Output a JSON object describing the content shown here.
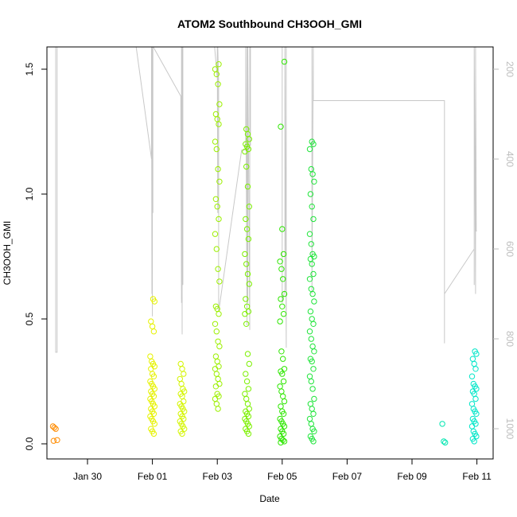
{
  "chart_data": {
    "type": "scatter",
    "title": "ATOM2 Southbound CH3OOH_GMI",
    "xlabel": "Date",
    "ylabel": "CH3OOH_GMI",
    "x_range": [
      "2017-01-28T18:00",
      "2017-02-11T12:00"
    ],
    "ylim": [
      0,
      1.6
    ],
    "x_ticks": [
      {
        "date": "2017-01-30",
        "label": "Jan 30"
      },
      {
        "date": "2017-02-01",
        "label": "Feb 01"
      },
      {
        "date": "2017-02-03",
        "label": "Feb 03"
      },
      {
        "date": "2017-02-05",
        "label": "Feb 05"
      },
      {
        "date": "2017-02-07",
        "label": "Feb 07"
      },
      {
        "date": "2017-02-09",
        "label": "Feb 09"
      },
      {
        "date": "2017-02-11",
        "label": "Feb 11"
      }
    ],
    "y_ticks": [
      0.0,
      0.5,
      1.0,
      1.5
    ],
    "y_tick_labels": [
      "0.0",
      "0.5",
      "1.0",
      "1.5"
    ],
    "right_axis": {
      "quantity": "pressure",
      "inverted": true,
      "range": [
        150,
        1040
      ],
      "ticks": [
        200,
        400,
        600,
        800,
        1000
      ],
      "color": "#bdbdbd"
    },
    "grid": false,
    "legend": "none",
    "series": [
      {
        "time": "2017-01-29T00:00",
        "color": "#ff8c00",
        "values": [
          0.07,
          0.065,
          0.06,
          0.015,
          0.012
        ]
      },
      {
        "time": "2017-02-01T00:00",
        "color": "#e6f200",
        "values": [
          0.58,
          0.57,
          0.49,
          0.47,
          0.45,
          0.35,
          0.33,
          0.32,
          0.31,
          0.3,
          0.28,
          0.27,
          0.25,
          0.24,
          0.23,
          0.22,
          0.21,
          0.2,
          0.19,
          0.18,
          0.17,
          0.16,
          0.15,
          0.14,
          0.13,
          0.12,
          0.11,
          0.1,
          0.09,
          0.08,
          0.06,
          0.05,
          0.04
        ]
      },
      {
        "time": "2017-02-01T22:00",
        "color": "#d4f500",
        "values": [
          0.32,
          0.3,
          0.28,
          0.26,
          0.24,
          0.22,
          0.21,
          0.2,
          0.19,
          0.17,
          0.16,
          0.15,
          0.14,
          0.13,
          0.12,
          0.11,
          0.1,
          0.09,
          0.08,
          0.07,
          0.06,
          0.05,
          0.04
        ]
      },
      {
        "time": "2017-02-03T00:00",
        "color": "#9cf000",
        "values": [
          1.52,
          1.5,
          1.48,
          1.44,
          1.36,
          1.32,
          1.3,
          1.28,
          1.21,
          1.18,
          1.1,
          1.05,
          0.98,
          0.95,
          0.9,
          0.84,
          0.78,
          0.7,
          0.65,
          0.55,
          0.54,
          0.52,
          0.48,
          0.45,
          0.41,
          0.39,
          0.35,
          0.33,
          0.31,
          0.3,
          0.28,
          0.26,
          0.24,
          0.23,
          0.2,
          0.19,
          0.18,
          0.16,
          0.14
        ]
      },
      {
        "time": "2017-02-03T22:00",
        "color": "#7cf000",
        "values": [
          1.26,
          1.24,
          1.22,
          1.2,
          1.19,
          1.18,
          1.17,
          1.11,
          1.03,
          0.95,
          0.9,
          0.86,
          0.82,
          0.76,
          0.72,
          0.68,
          0.64,
          0.58,
          0.55,
          0.53,
          0.52,
          0.48,
          0.36,
          0.32,
          0.28,
          0.25,
          0.22,
          0.2,
          0.18,
          0.16,
          0.14,
          0.13,
          0.12,
          0.11,
          0.1,
          0.09,
          0.08,
          0.07,
          0.06,
          0.05,
          0.04
        ]
      },
      {
        "time": "2017-02-05T00:00",
        "color": "#2ee600",
        "values": [
          1.53,
          1.27,
          0.86,
          0.76,
          0.73,
          0.7,
          0.66,
          0.6,
          0.58,
          0.55,
          0.52,
          0.49,
          0.37,
          0.34,
          0.3,
          0.29,
          0.28,
          0.25,
          0.23,
          0.21,
          0.19,
          0.17,
          0.15,
          0.13,
          0.12,
          0.1,
          0.09,
          0.08,
          0.07,
          0.06,
          0.05,
          0.04,
          0.03,
          0.02,
          0.015,
          0.01,
          0.005
        ]
      },
      {
        "time": "2017-02-05T22:00",
        "color": "#1fe53a",
        "values": [
          1.21,
          1.2,
          1.18,
          1.1,
          1.08,
          1.05,
          1.0,
          0.95,
          0.9,
          0.84,
          0.8,
          0.76,
          0.75,
          0.74,
          0.72,
          0.68,
          0.66,
          0.62,
          0.6,
          0.57,
          0.53,
          0.5,
          0.48,
          0.45,
          0.42,
          0.39,
          0.37,
          0.34,
          0.33,
          0.3,
          0.27,
          0.25,
          0.22,
          0.18,
          0.16,
          0.14,
          0.12,
          0.1,
          0.08,
          0.06,
          0.05,
          0.03,
          0.02,
          0.01
        ]
      },
      {
        "time": "2017-02-10T00:00",
        "color": "#00e6b0",
        "values": [
          0.08,
          0.01,
          0.005
        ]
      },
      {
        "time": "2017-02-10T22:00",
        "color": "#00e6c8",
        "values": [
          0.37,
          0.36,
          0.34,
          0.32,
          0.3,
          0.27,
          0.24,
          0.23,
          0.22,
          0.21,
          0.2,
          0.18,
          0.16,
          0.14,
          0.13,
          0.12,
          0.1,
          0.09,
          0.08,
          0.07,
          0.05,
          0.04,
          0.03,
          0.02,
          0.01
        ]
      }
    ],
    "pressure_trace": [
      [
        "2017-01-28T23:00",
        150
      ],
      [
        "2017-01-29T00:30",
        150
      ],
      [
        "2017-01-29T00:30",
        830
      ],
      [
        "2017-01-29T01:30",
        830
      ],
      [
        "2017-01-29T01:30",
        150
      ],
      [
        "2017-01-31T12:00",
        150
      ],
      [
        "2017-01-31T23:20",
        400
      ],
      [
        "2017-01-31T23:20",
        150
      ],
      [
        "2017-01-31T23:40",
        700
      ],
      [
        "2017-01-31T23:40",
        150
      ],
      [
        "2017-02-01T00:00",
        750
      ],
      [
        "2017-02-01T00:00",
        150
      ],
      [
        "2017-02-01T00:20",
        520
      ],
      [
        "2017-02-01T00:20",
        150
      ],
      [
        "2017-02-01T00:40",
        150
      ],
      [
        "2017-02-01T21:00",
        260
      ],
      [
        "2017-02-01T21:30",
        720
      ],
      [
        "2017-02-01T21:30",
        150
      ],
      [
        "2017-02-01T22:00",
        790
      ],
      [
        "2017-02-01T22:00",
        150
      ],
      [
        "2017-02-01T22:30",
        680
      ],
      [
        "2017-02-01T22:30",
        150
      ],
      [
        "2017-02-02T22:00",
        150
      ],
      [
        "2017-02-03T00:00",
        220
      ],
      [
        "2017-02-03T00:00",
        150
      ],
      [
        "2017-02-03T00:20",
        520
      ],
      [
        "2017-02-03T00:20",
        150
      ],
      [
        "2017-02-03T01:00",
        230
      ],
      [
        "2017-02-03T01:00",
        740
      ],
      [
        "2017-02-03T18:00",
        380
      ],
      [
        "2017-02-03T21:00",
        380
      ],
      [
        "2017-02-03T21:00",
        150
      ],
      [
        "2017-02-03T22:00",
        770
      ],
      [
        "2017-02-03T22:00",
        150
      ],
      [
        "2017-02-03T22:30",
        720
      ],
      [
        "2017-02-03T22:30",
        150
      ],
      [
        "2017-02-04T00:00",
        780
      ],
      [
        "2017-02-04T00:00",
        150
      ],
      [
        "2017-02-04T00:30",
        370
      ],
      [
        "2017-02-04T00:30",
        150
      ],
      [
        "2017-02-05T00:00",
        150
      ],
      [
        "2017-02-05T00:00",
        720
      ],
      [
        "2017-02-05T02:00",
        690
      ],
      [
        "2017-02-05T02:00",
        150
      ],
      [
        "2017-02-05T03:00",
        820
      ],
      [
        "2017-02-05T03:00",
        150
      ],
      [
        "2017-02-05T22:00",
        150
      ],
      [
        "2017-02-05T22:00",
        700
      ],
      [
        "2017-02-05T23:00",
        150
      ],
      [
        "2017-02-05T23:00",
        270
      ],
      [
        "2017-02-10T00:00",
        270
      ],
      [
        "2017-02-10T00:00",
        810
      ],
      [
        "2017-02-10T00:00",
        700
      ],
      [
        "2017-02-10T22:00",
        600
      ],
      [
        "2017-02-10T22:00",
        680
      ],
      [
        "2017-02-10T22:00",
        150
      ],
      [
        "2017-02-10T23:00",
        700
      ],
      [
        "2017-02-10T23:00",
        150
      ],
      [
        "2017-02-10T23:30",
        560
      ],
      [
        "2017-02-11T00:00",
        560
      ]
    ]
  }
}
